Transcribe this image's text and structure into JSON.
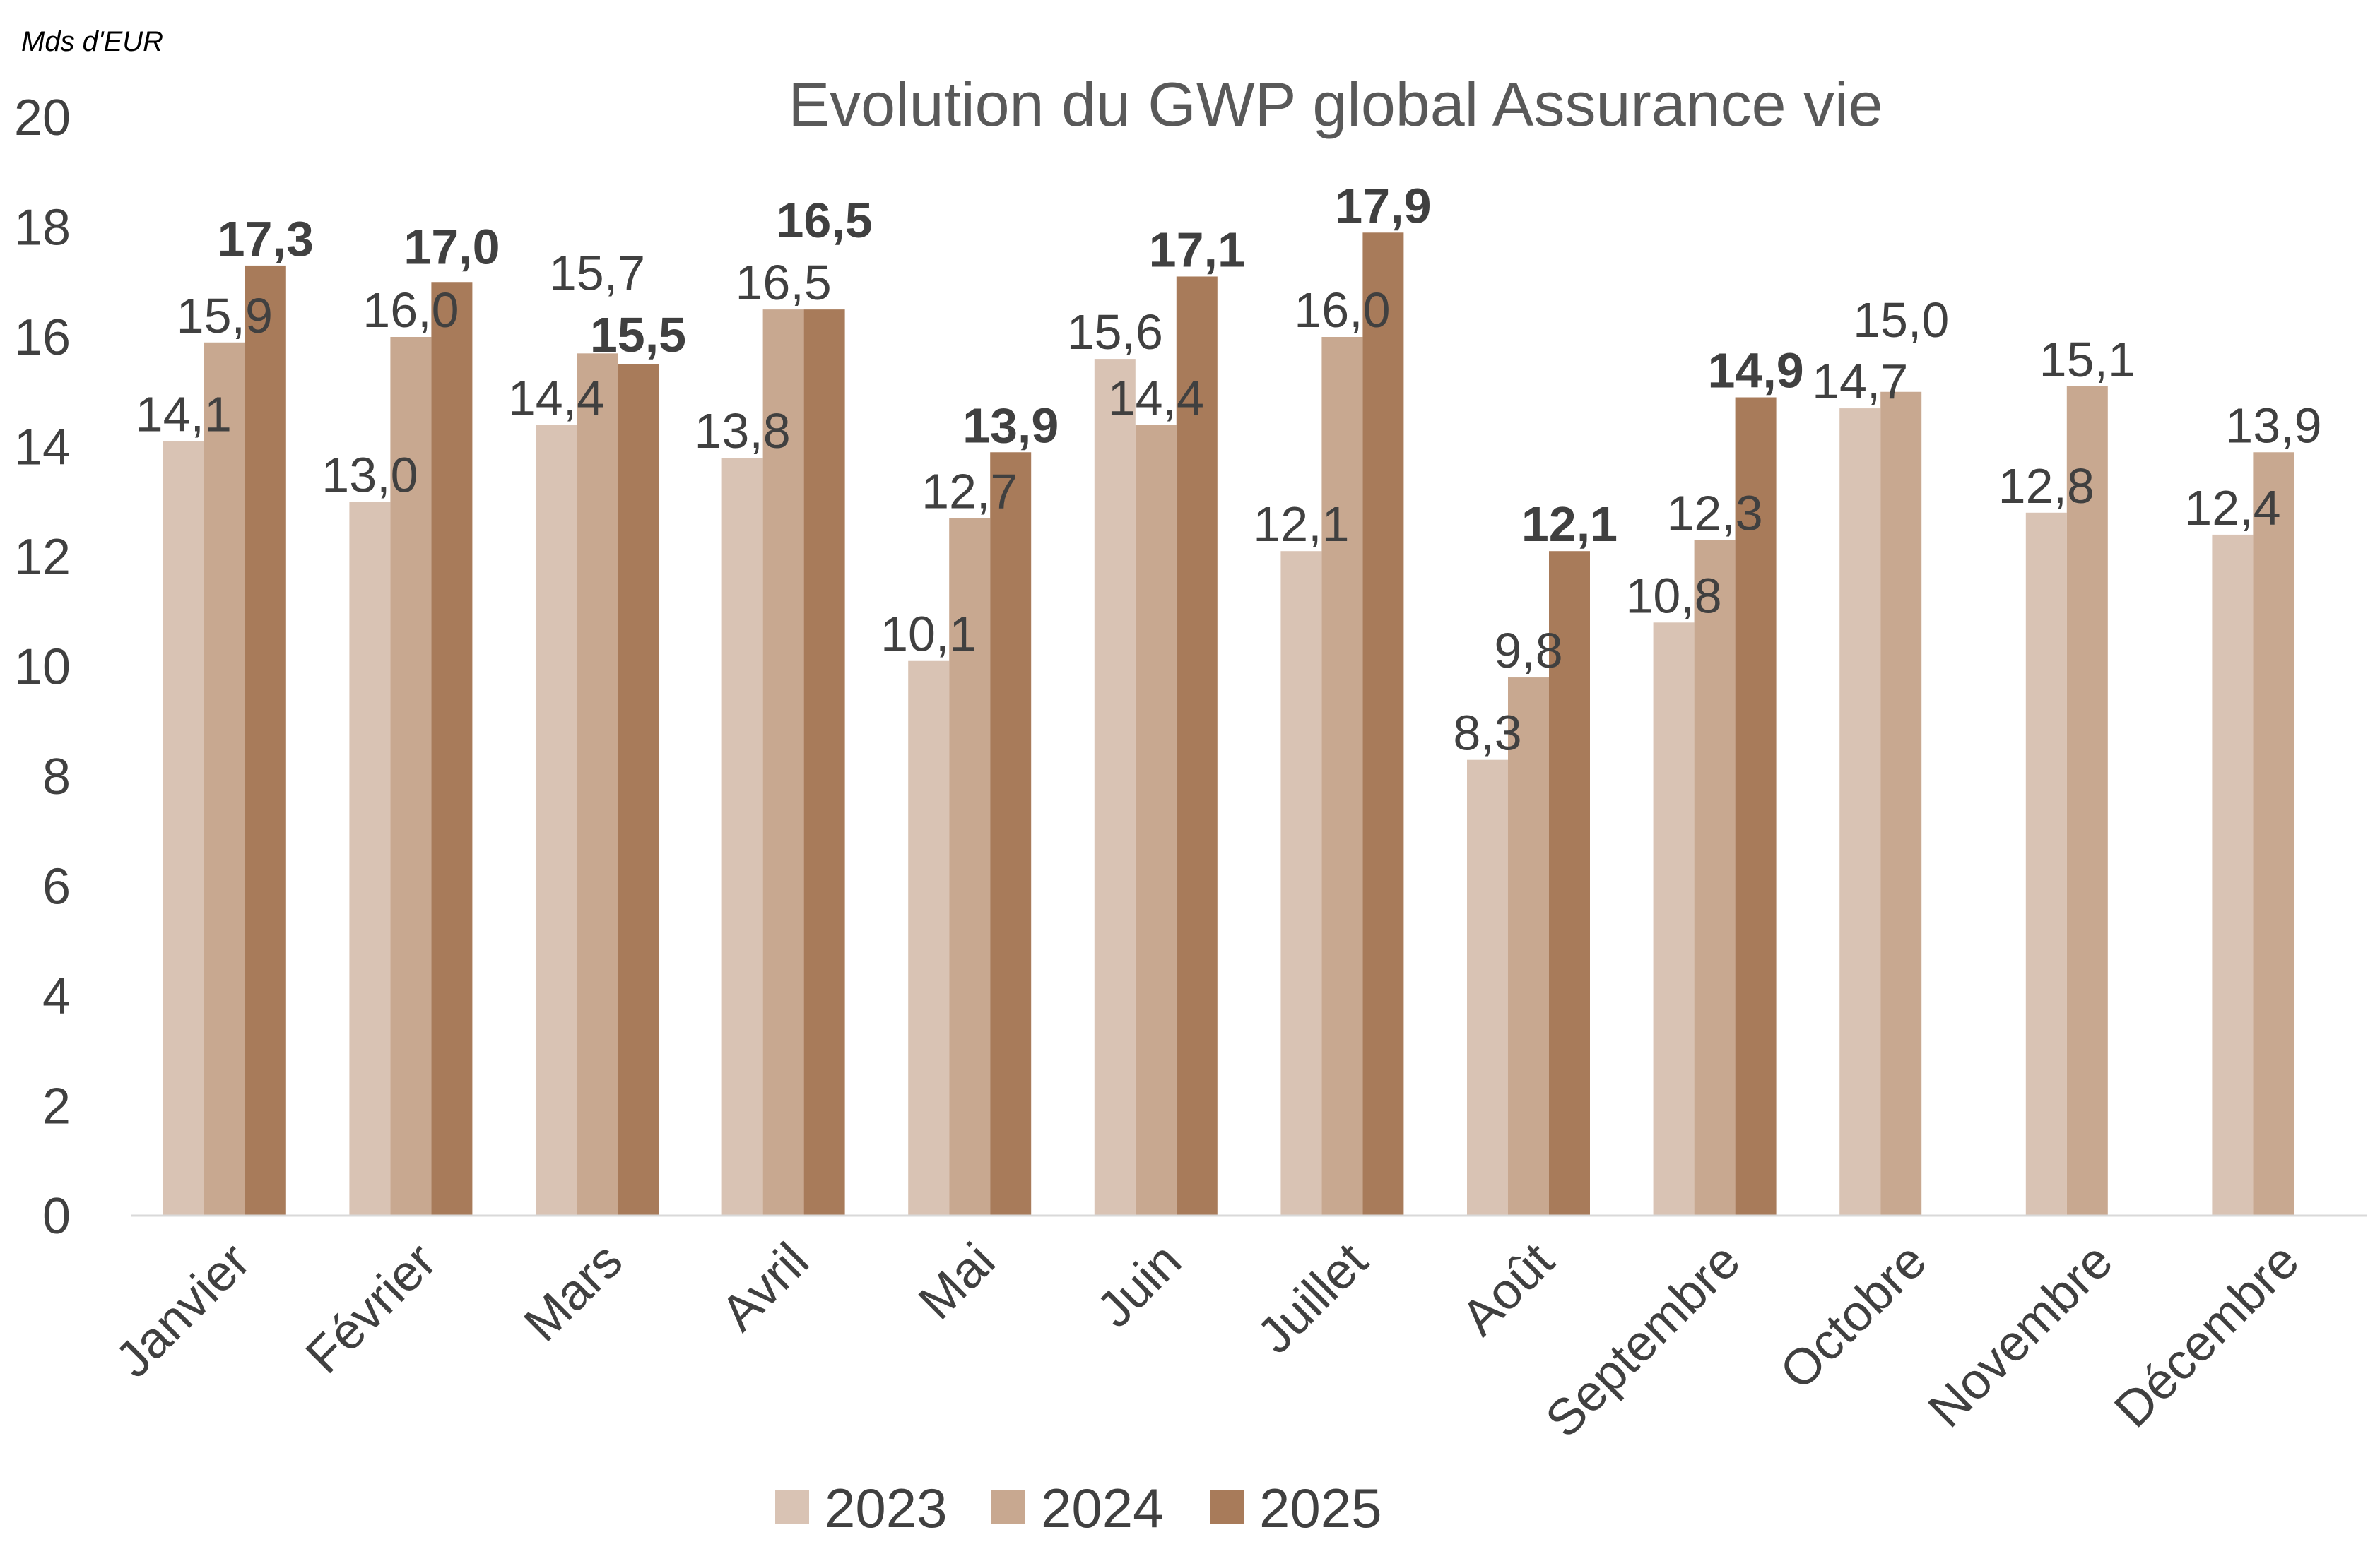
{
  "chart_data": {
    "type": "bar",
    "title": "Evolution du GWP global Assurance vie",
    "unit_label": "Mds d'EUR",
    "xlabel": "",
    "ylabel": "",
    "ylim": [
      0,
      20
    ],
    "yticks": [
      0,
      2,
      4,
      6,
      8,
      10,
      12,
      14,
      16,
      18,
      20
    ],
    "grid": false,
    "legend_position": "bottom",
    "decimal_separator": ",",
    "categories": [
      "Janvier",
      "Février",
      "Mars",
      "Avril",
      "Mai",
      "Juin",
      "Juillet",
      "Août",
      "Septembre",
      "Octobre",
      "Novembre",
      "Décembre"
    ],
    "series": [
      {
        "name": "2023",
        "color": "#d9c3b4",
        "bold_labels": false,
        "values": [
          14.1,
          13.0,
          14.4,
          13.8,
          10.1,
          15.6,
          12.1,
          8.3,
          10.8,
          14.7,
          12.8,
          12.4
        ]
      },
      {
        "name": "2024",
        "color": "#c8a890",
        "bold_labels": false,
        "values": [
          15.9,
          16.0,
          15.7,
          16.5,
          12.7,
          14.4,
          16.0,
          9.8,
          12.3,
          15.0,
          15.1,
          13.9
        ]
      },
      {
        "name": "2025",
        "color": "#a87b5a",
        "bold_labels": true,
        "values": [
          17.3,
          17.0,
          15.5,
          16.5,
          13.9,
          17.1,
          17.9,
          12.1,
          14.9,
          null,
          null,
          null
        ]
      }
    ],
    "text_color": "#404040",
    "axis_color": "#d9d9d9"
  }
}
